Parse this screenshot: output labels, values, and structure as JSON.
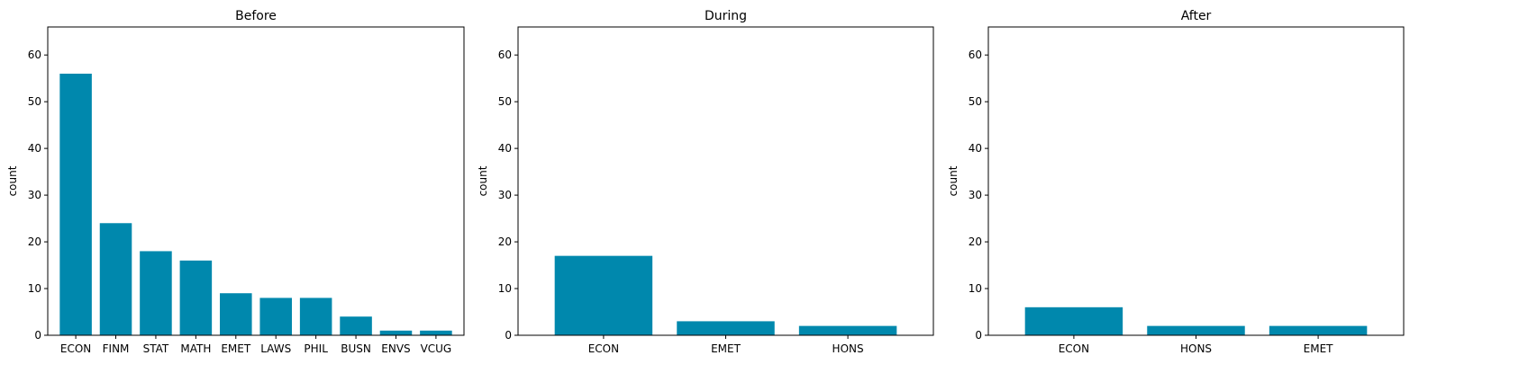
{
  "figure": {
    "bar_color": "#0088ad"
  },
  "chart_data": [
    {
      "type": "bar",
      "title": "Before",
      "xlabel": "",
      "ylabel": "count",
      "ylim": [
        0,
        66
      ],
      "yticks": [
        0,
        10,
        20,
        30,
        40,
        50,
        60
      ],
      "categories": [
        "ECON",
        "FINM",
        "STAT",
        "MATH",
        "EMET",
        "LAWS",
        "PHIL",
        "BUSN",
        "ENVS",
        "VCUG"
      ],
      "values": [
        56,
        24,
        18,
        16,
        9,
        8,
        8,
        4,
        1,
        1
      ],
      "grid": false
    },
    {
      "type": "bar",
      "title": "During",
      "xlabel": "",
      "ylabel": "count",
      "ylim": [
        0,
        66
      ],
      "yticks": [
        0,
        10,
        20,
        30,
        40,
        50,
        60
      ],
      "categories": [
        "ECON",
        "EMET",
        "HONS"
      ],
      "values": [
        17,
        3,
        2
      ],
      "grid": false
    },
    {
      "type": "bar",
      "title": "After",
      "xlabel": "",
      "ylabel": "count",
      "ylim": [
        0,
        66
      ],
      "yticks": [
        0,
        10,
        20,
        30,
        40,
        50,
        60
      ],
      "categories": [
        "ECON",
        "HONS",
        "EMET"
      ],
      "values": [
        6,
        2,
        2
      ],
      "grid": false
    }
  ]
}
